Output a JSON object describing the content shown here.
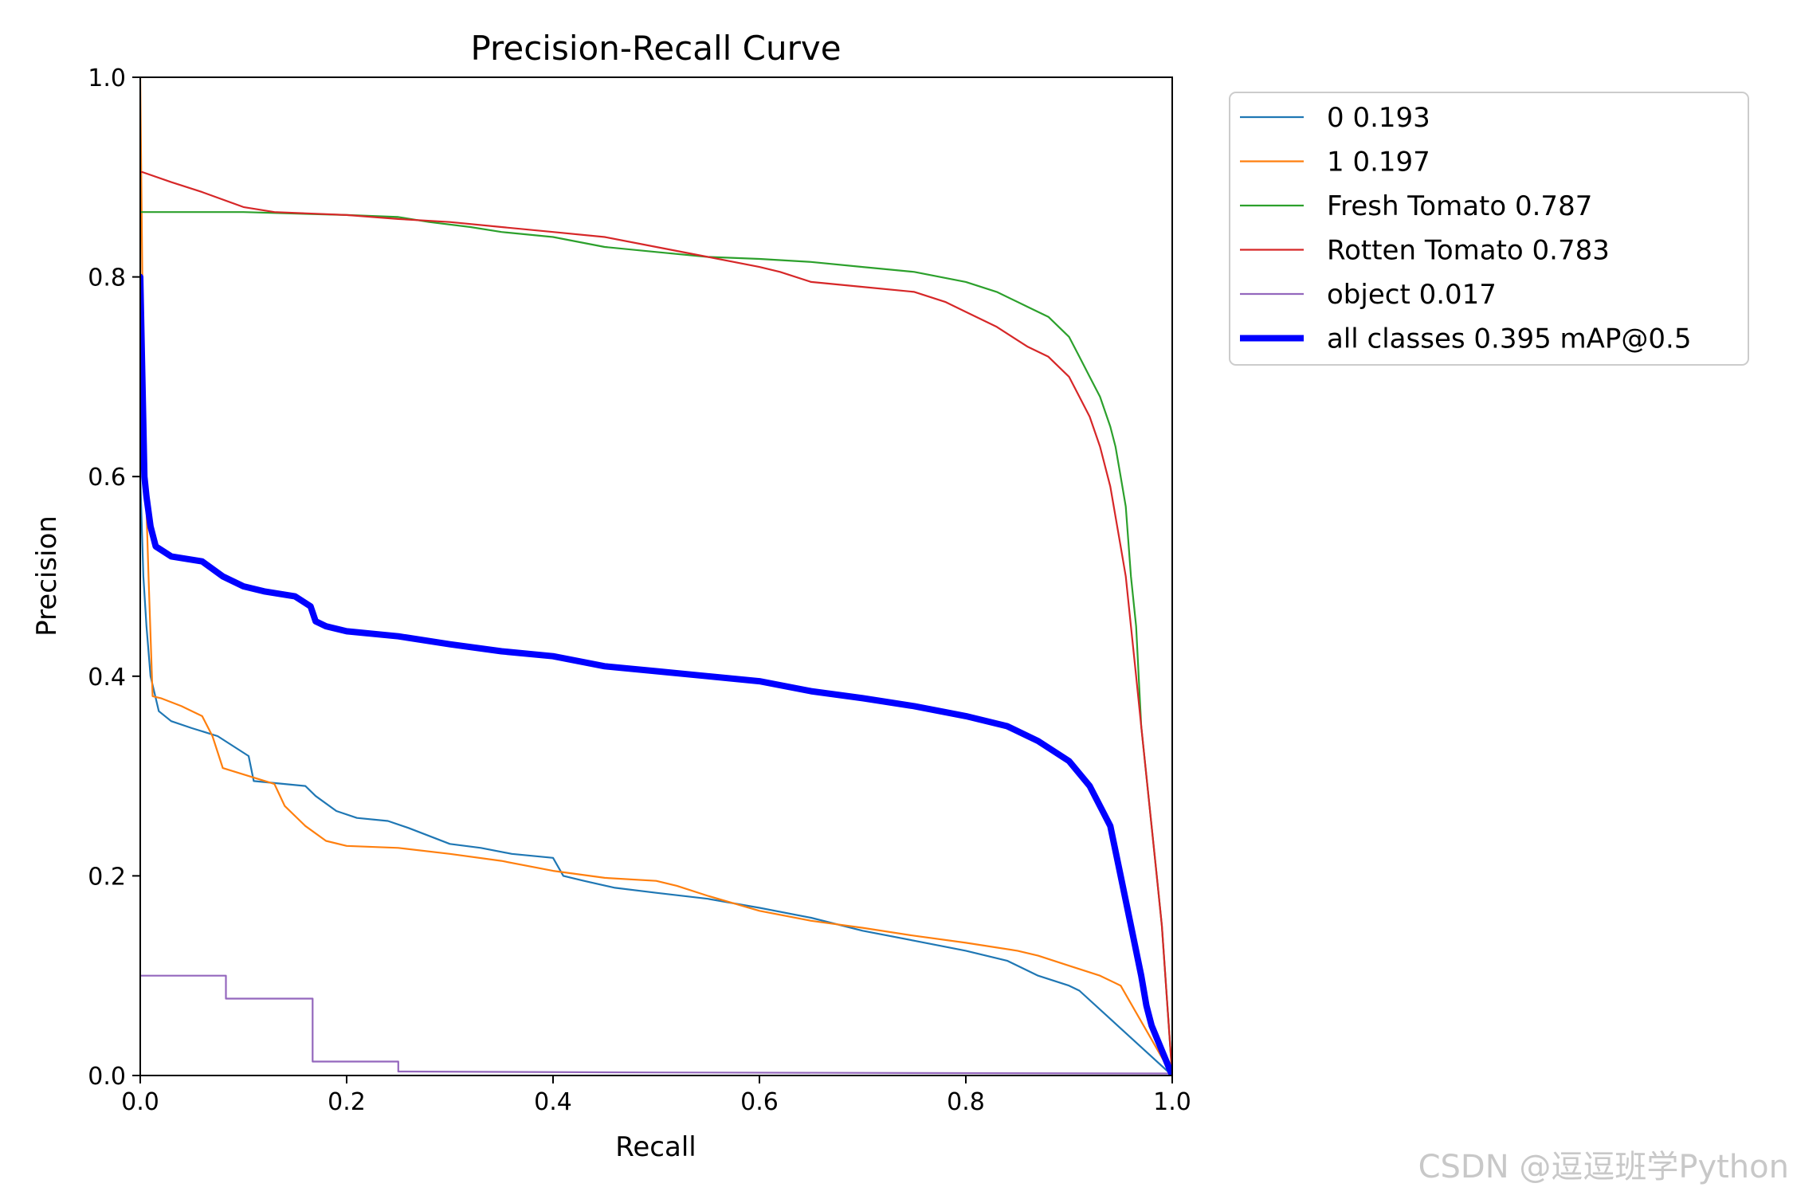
{
  "chart_data": {
    "type": "line",
    "title": "Precision-Recall Curve",
    "xlabel": "Recall",
    "ylabel": "Precision",
    "xlim": [
      0,
      1
    ],
    "ylim": [
      0,
      1
    ],
    "xticks": [
      "0.0",
      "0.2",
      "0.4",
      "0.6",
      "0.8",
      "1.0"
    ],
    "yticks": [
      "0.0",
      "0.2",
      "0.4",
      "0.6",
      "0.8",
      "1.0"
    ],
    "grid": false,
    "legend_position": "outside-top-right",
    "series": [
      {
        "name": "0 0.193",
        "color": "#1f77b4",
        "x": [
          0.0,
          0.003,
          0.006,
          0.01,
          0.018,
          0.03,
          0.05,
          0.075,
          0.105,
          0.11,
          0.13,
          0.16,
          0.17,
          0.19,
          0.21,
          0.24,
          0.26,
          0.28,
          0.3,
          0.33,
          0.36,
          0.4,
          0.41,
          0.43,
          0.46,
          0.5,
          0.55,
          0.6,
          0.65,
          0.7,
          0.75,
          0.8,
          0.84,
          0.87,
          0.9,
          0.91,
          1.0
        ],
        "y": [
          0.6,
          0.5,
          0.45,
          0.4,
          0.365,
          0.355,
          0.348,
          0.34,
          0.32,
          0.295,
          0.293,
          0.29,
          0.28,
          0.265,
          0.258,
          0.255,
          0.248,
          0.24,
          0.232,
          0.228,
          0.222,
          0.218,
          0.2,
          0.195,
          0.188,
          0.183,
          0.177,
          0.168,
          0.158,
          0.145,
          0.135,
          0.125,
          0.115,
          0.1,
          0.09,
          0.085,
          0.0
        ]
      },
      {
        "name": "1 0.197",
        "color": "#ff7f0e",
        "x": [
          0.0,
          0.002,
          0.005,
          0.008,
          0.012,
          0.02,
          0.04,
          0.06,
          0.07,
          0.08,
          0.13,
          0.14,
          0.16,
          0.18,
          0.2,
          0.25,
          0.3,
          0.35,
          0.4,
          0.45,
          0.5,
          0.52,
          0.55,
          0.6,
          0.65,
          0.7,
          0.75,
          0.8,
          0.85,
          0.87,
          0.9,
          0.93,
          0.95,
          1.0
        ],
        "y": [
          1.0,
          0.8,
          0.6,
          0.5,
          0.38,
          0.378,
          0.37,
          0.36,
          0.34,
          0.308,
          0.292,
          0.27,
          0.25,
          0.235,
          0.23,
          0.228,
          0.222,
          0.215,
          0.205,
          0.198,
          0.195,
          0.19,
          0.18,
          0.165,
          0.155,
          0.148,
          0.14,
          0.133,
          0.125,
          0.12,
          0.11,
          0.1,
          0.09,
          0.0
        ]
      },
      {
        "name": "Fresh Tomato 0.787",
        "color": "#2ca02c",
        "x": [
          0.0,
          0.002,
          0.1,
          0.2,
          0.25,
          0.28,
          0.32,
          0.35,
          0.4,
          0.45,
          0.5,
          0.55,
          0.6,
          0.65,
          0.7,
          0.75,
          0.8,
          0.83,
          0.86,
          0.88,
          0.9,
          0.91,
          0.92,
          0.93,
          0.94,
          0.945,
          0.95,
          0.955,
          0.96,
          0.965,
          0.97,
          0.975,
          0.98,
          0.985,
          0.99,
          1.0
        ],
        "y": [
          0.865,
          0.865,
          0.865,
          0.862,
          0.86,
          0.855,
          0.85,
          0.845,
          0.84,
          0.83,
          0.825,
          0.82,
          0.818,
          0.815,
          0.81,
          0.805,
          0.795,
          0.785,
          0.77,
          0.76,
          0.74,
          0.72,
          0.7,
          0.68,
          0.65,
          0.63,
          0.6,
          0.57,
          0.5,
          0.45,
          0.35,
          0.3,
          0.25,
          0.2,
          0.15,
          0.0
        ]
      },
      {
        "name": "Rotten Tomato 0.783",
        "color": "#d62728",
        "x": [
          0.0,
          0.002,
          0.03,
          0.06,
          0.1,
          0.13,
          0.2,
          0.25,
          0.3,
          0.35,
          0.4,
          0.45,
          0.5,
          0.55,
          0.6,
          0.62,
          0.65,
          0.7,
          0.75,
          0.78,
          0.8,
          0.83,
          0.86,
          0.88,
          0.9,
          0.91,
          0.92,
          0.93,
          0.94,
          0.945,
          0.95,
          0.955,
          0.96,
          0.965,
          0.97,
          0.975,
          0.98,
          0.985,
          0.99,
          1.0
        ],
        "y": [
          0.905,
          0.905,
          0.895,
          0.885,
          0.87,
          0.865,
          0.862,
          0.858,
          0.855,
          0.85,
          0.845,
          0.84,
          0.83,
          0.82,
          0.81,
          0.805,
          0.795,
          0.79,
          0.785,
          0.775,
          0.765,
          0.75,
          0.73,
          0.72,
          0.7,
          0.68,
          0.66,
          0.63,
          0.59,
          0.56,
          0.53,
          0.5,
          0.45,
          0.4,
          0.35,
          0.3,
          0.25,
          0.2,
          0.15,
          0.0
        ]
      },
      {
        "name": "object 0.017",
        "color": "#9467bd",
        "x": [
          0.0,
          0.083,
          0.083,
          0.167,
          0.167,
          0.25,
          0.25,
          0.5,
          1.0
        ],
        "y": [
          0.1,
          0.1,
          0.077,
          0.077,
          0.014,
          0.014,
          0.004,
          0.003,
          0.002
        ]
      },
      {
        "name": "all classes 0.395 mAP@0.5",
        "color": "#0000ff",
        "bold": true,
        "x": [
          0.0,
          0.002,
          0.004,
          0.006,
          0.01,
          0.015,
          0.03,
          0.06,
          0.08,
          0.1,
          0.12,
          0.15,
          0.165,
          0.17,
          0.18,
          0.2,
          0.25,
          0.3,
          0.35,
          0.4,
          0.45,
          0.5,
          0.55,
          0.6,
          0.65,
          0.7,
          0.75,
          0.8,
          0.84,
          0.87,
          0.9,
          0.92,
          0.94,
          0.95,
          0.96,
          0.97,
          0.975,
          0.98,
          1.0
        ],
        "y": [
          0.8,
          0.7,
          0.6,
          0.58,
          0.55,
          0.53,
          0.52,
          0.515,
          0.5,
          0.49,
          0.485,
          0.48,
          0.47,
          0.455,
          0.45,
          0.445,
          0.44,
          0.432,
          0.425,
          0.42,
          0.41,
          0.405,
          0.4,
          0.395,
          0.385,
          0.378,
          0.37,
          0.36,
          0.35,
          0.335,
          0.315,
          0.29,
          0.25,
          0.2,
          0.15,
          0.1,
          0.07,
          0.05,
          0.0
        ]
      }
    ]
  },
  "watermark": "CSDN @逗逗班学Python"
}
